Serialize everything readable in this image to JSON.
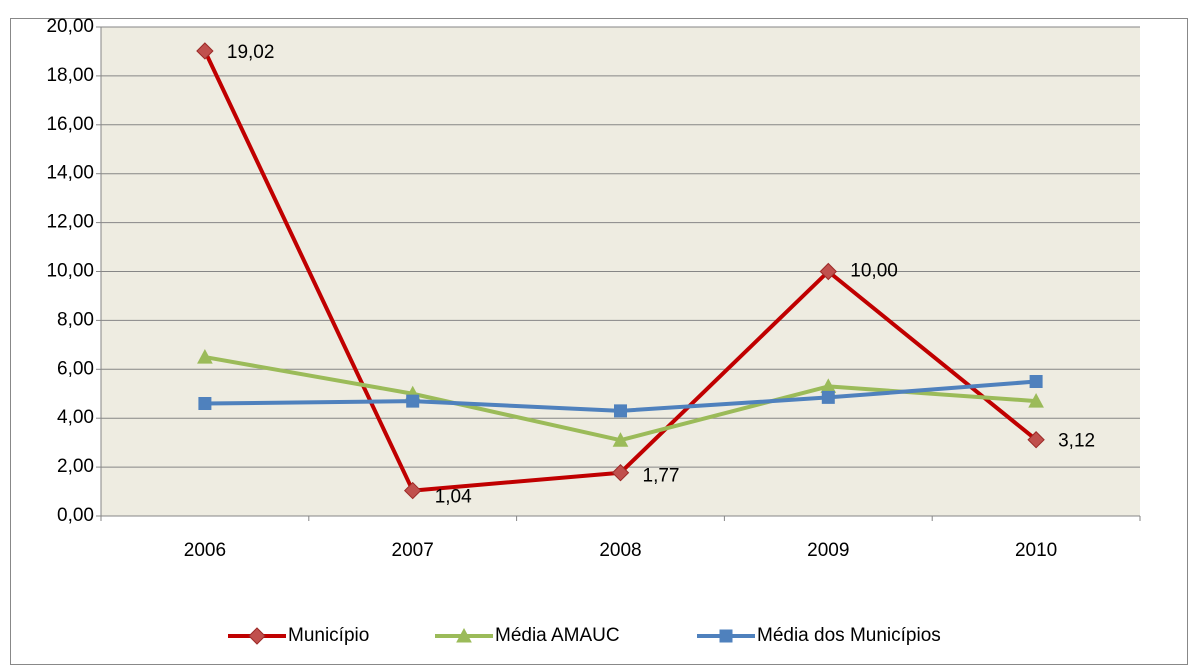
{
  "chart_data": {
    "type": "line",
    "categories": [
      "2006",
      "2007",
      "2008",
      "2009",
      "2010"
    ],
    "series": [
      {
        "name": "Município",
        "color": "#c00000",
        "marker_color": "#c0504d",
        "marker": "diamond",
        "values": [
          19.02,
          1.04,
          1.77,
          10.0,
          3.12
        ],
        "value_labels": [
          "19,02",
          "1,04",
          "1,77",
          "10,00",
          "3,12"
        ]
      },
      {
        "name": "Média AMAUC",
        "color": "#9bbb59",
        "marker_color": "#9bbb59",
        "marker": "triangle",
        "values": [
          6.5,
          5.0,
          3.1,
          5.3,
          4.7
        ]
      },
      {
        "name": "Média dos Municípios",
        "color": "#4f81bd",
        "marker_color": "#4f81bd",
        "marker": "square",
        "values": [
          4.6,
          4.7,
          4.3,
          4.85,
          5.5
        ]
      }
    ],
    "ylim": [
      0,
      20
    ],
    "yticks": [
      {
        "value": 0,
        "label": "0,00"
      },
      {
        "value": 2,
        "label": "2,00"
      },
      {
        "value": 4,
        "label": "4,00"
      },
      {
        "value": 6,
        "label": "6,00"
      },
      {
        "value": 8,
        "label": "8,00"
      },
      {
        "value": 10,
        "label": "10,00"
      },
      {
        "value": 12,
        "label": "12,00"
      },
      {
        "value": 14,
        "label": "14,00"
      },
      {
        "value": 16,
        "label": "16,00"
      },
      {
        "value": 18,
        "label": "18,00"
      },
      {
        "value": 20,
        "label": "20,00"
      }
    ],
    "grid": true,
    "legend": "bottom",
    "plot_background": "#eeece1"
  }
}
